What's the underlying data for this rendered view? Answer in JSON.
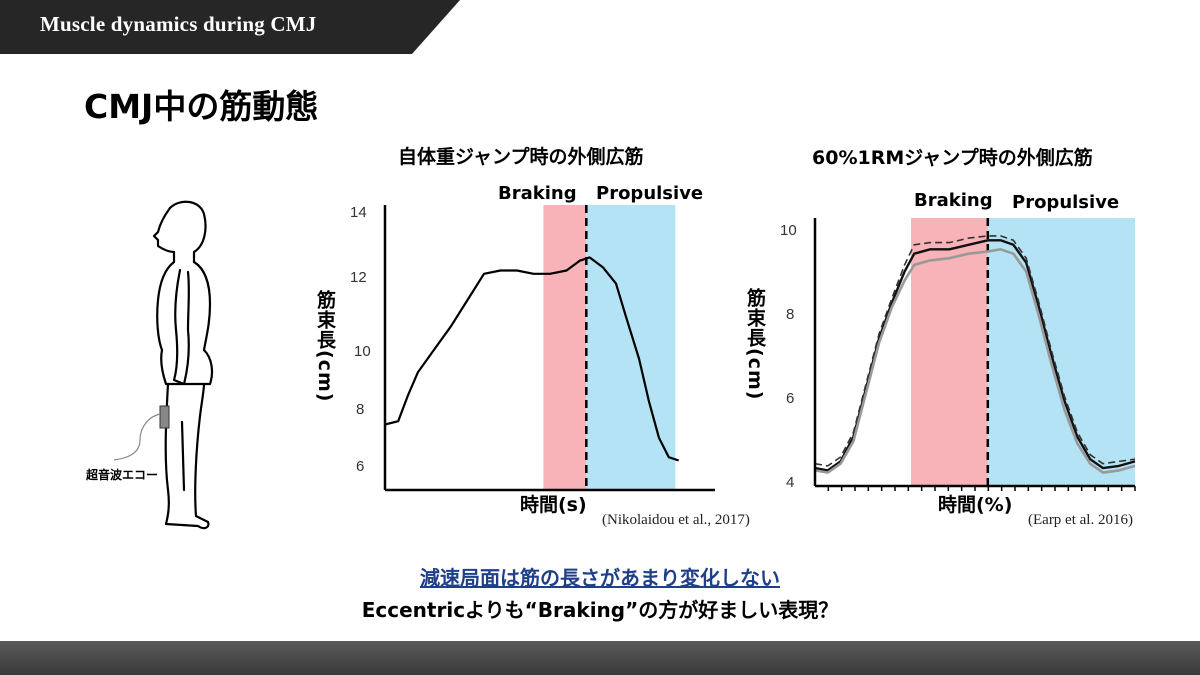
{
  "header": {
    "title": "Muscle dynamics during CMJ",
    "bar_color": "#262626"
  },
  "page_title": "CMJ中の筋動態",
  "figure": {
    "device_label": "超音波エコー"
  },
  "chart_data": [
    {
      "type": "line",
      "title": "自体重ジャンプ時の外側広筋",
      "phase_labels": [
        "Braking",
        "Propulsive"
      ],
      "phases": [
        {
          "name": "Braking",
          "x_start": 0.48,
          "x_end": 0.61,
          "color": "#f7b3b8"
        },
        {
          "name": "Propulsive",
          "x_start": 0.61,
          "x_end": 0.88,
          "color": "#b3e3f4"
        }
      ],
      "divider_x": 0.61,
      "ylabel": "筋束長(cm)",
      "xlabel": "時間(s)",
      "ylim": [
        5.3,
        14
      ],
      "xlim": [
        0,
        1
      ],
      "yticks": [
        "6",
        "8",
        "10",
        "12",
        "14"
      ],
      "series": [
        {
          "name": "vastus lateralis",
          "points": [
            [
              0.0,
              7.3
            ],
            [
              0.04,
              7.4
            ],
            [
              0.07,
              8.2
            ],
            [
              0.1,
              8.9
            ],
            [
              0.15,
              9.6
            ],
            [
              0.2,
              10.3
            ],
            [
              0.25,
              11.1
            ],
            [
              0.3,
              11.9
            ],
            [
              0.35,
              12.0
            ],
            [
              0.4,
              12.0
            ],
            [
              0.45,
              11.9
            ],
            [
              0.5,
              11.9
            ],
            [
              0.55,
              12.0
            ],
            [
              0.59,
              12.3
            ],
            [
              0.62,
              12.4
            ],
            [
              0.66,
              12.1
            ],
            [
              0.7,
              11.6
            ],
            [
              0.73,
              10.6
            ],
            [
              0.77,
              9.3
            ],
            [
              0.8,
              8.0
            ],
            [
              0.83,
              6.9
            ],
            [
              0.86,
              6.3
            ],
            [
              0.89,
              6.2
            ]
          ],
          "color": "#000000"
        }
      ],
      "citation": "(Nikolaidou et al., 2017)"
    },
    {
      "type": "line",
      "title": "60%1RMジャンプ時の外側広筋",
      "phase_labels": [
        "Braking",
        "Propulsive"
      ],
      "phases": [
        {
          "name": "Braking",
          "x_start": 0.3,
          "x_end": 0.54,
          "color": "#f7b3b8"
        },
        {
          "name": "Propulsive",
          "x_start": 0.54,
          "x_end": 1.0,
          "color": "#b3e3f4"
        }
      ],
      "divider_x": 0.54,
      "ylabel": "筋束長(cm)",
      "xlabel": "時間(%)",
      "ylim": [
        4,
        10
      ],
      "xlim": [
        0,
        1
      ],
      "yticks": [
        "4",
        "6",
        "8",
        "10"
      ],
      "series": [
        {
          "name": "mean",
          "points": [
            [
              0.0,
              4.4
            ],
            [
              0.04,
              4.35
            ],
            [
              0.08,
              4.55
            ],
            [
              0.12,
              5.1
            ],
            [
              0.16,
              6.2
            ],
            [
              0.2,
              7.3
            ],
            [
              0.24,
              8.1
            ],
            [
              0.28,
              8.8
            ],
            [
              0.31,
              9.2
            ],
            [
              0.36,
              9.3
            ],
            [
              0.42,
              9.3
            ],
            [
              0.48,
              9.4
            ],
            [
              0.54,
              9.5
            ],
            [
              0.58,
              9.5
            ],
            [
              0.62,
              9.4
            ],
            [
              0.66,
              9.0
            ],
            [
              0.7,
              8.0
            ],
            [
              0.74,
              6.9
            ],
            [
              0.78,
              5.9
            ],
            [
              0.82,
              5.1
            ],
            [
              0.86,
              4.6
            ],
            [
              0.9,
              4.4
            ],
            [
              0.95,
              4.45
            ],
            [
              1.0,
              4.55
            ]
          ],
          "color": "#111111"
        },
        {
          "name": "upper",
          "points": [
            [
              0.0,
              4.5
            ],
            [
              0.04,
              4.45
            ],
            [
              0.08,
              4.65
            ],
            [
              0.12,
              5.2
            ],
            [
              0.16,
              6.3
            ],
            [
              0.2,
              7.4
            ],
            [
              0.24,
              8.2
            ],
            [
              0.28,
              8.95
            ],
            [
              0.31,
              9.4
            ],
            [
              0.36,
              9.45
            ],
            [
              0.42,
              9.45
            ],
            [
              0.48,
              9.55
            ],
            [
              0.54,
              9.6
            ],
            [
              0.58,
              9.6
            ],
            [
              0.62,
              9.5
            ],
            [
              0.66,
              9.1
            ],
            [
              0.7,
              8.1
            ],
            [
              0.74,
              7.0
            ],
            [
              0.78,
              6.0
            ],
            [
              0.82,
              5.2
            ],
            [
              0.86,
              4.7
            ],
            [
              0.9,
              4.5
            ],
            [
              0.95,
              4.55
            ],
            [
              1.0,
              4.6
            ]
          ],
          "color": "#333333"
        },
        {
          "name": "lower",
          "points": [
            [
              0.0,
              4.35
            ],
            [
              0.04,
              4.3
            ],
            [
              0.08,
              4.5
            ],
            [
              0.12,
              5.0
            ],
            [
              0.16,
              6.1
            ],
            [
              0.2,
              7.2
            ],
            [
              0.24,
              8.0
            ],
            [
              0.28,
              8.6
            ],
            [
              0.31,
              8.95
            ],
            [
              0.36,
              9.05
            ],
            [
              0.42,
              9.1
            ],
            [
              0.48,
              9.2
            ],
            [
              0.54,
              9.25
            ],
            [
              0.58,
              9.3
            ],
            [
              0.62,
              9.2
            ],
            [
              0.66,
              8.8
            ],
            [
              0.7,
              7.8
            ],
            [
              0.74,
              6.7
            ],
            [
              0.78,
              5.7
            ],
            [
              0.82,
              4.95
            ],
            [
              0.86,
              4.5
            ],
            [
              0.9,
              4.3
            ],
            [
              0.95,
              4.35
            ],
            [
              1.0,
              4.45
            ]
          ],
          "color": "#999999"
        }
      ],
      "citation": "(Earp et al. 2016)"
    }
  ],
  "summary": {
    "line1": "減速局面は筋の長さがあまり変化しない",
    "line2": "Eccentricよりも“Braking”の方が好ましい表現？",
    "line1_color": "#1f3f8a"
  }
}
